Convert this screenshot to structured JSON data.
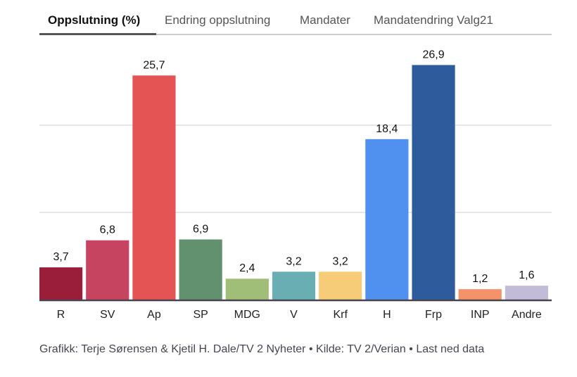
{
  "tabs": [
    {
      "label": "Oppslutning (%)",
      "active": true
    },
    {
      "label": "Endring oppslutning",
      "active": false
    },
    {
      "label": "Mandater",
      "active": false
    },
    {
      "label": "Mandatendring Valg21",
      "active": false
    }
  ],
  "footer": {
    "credit": "Grafikk: Terje Sørensen & Kjetil H. Dale/TV 2 Nyheter",
    "separator": "•",
    "source": "Kilde: TV 2/Verian",
    "download_link": "Last ned data"
  },
  "chart_data": {
    "type": "bar",
    "title": "Oppslutning (%)",
    "xlabel": "",
    "ylabel": "",
    "ylim": [
      0,
      27.5
    ],
    "gridlines": [
      10,
      20
    ],
    "grid": true,
    "categories": [
      "R",
      "SV",
      "Ap",
      "SP",
      "MDG",
      "V",
      "Krf",
      "H",
      "Frp",
      "INP",
      "Andre"
    ],
    "values": [
      3.7,
      6.8,
      25.7,
      6.9,
      2.4,
      3.2,
      3.2,
      18.4,
      26.9,
      1.2,
      1.6
    ],
    "value_labels": [
      "3,7",
      "6,8",
      "25,7",
      "6,9",
      "2,4",
      "3,2",
      "3,2",
      "18,4",
      "26,9",
      "1,2",
      "1,6"
    ],
    "colors": [
      "#9a1e3a",
      "#c64460",
      "#e45455",
      "#629170",
      "#a0be78",
      "#69aeb2",
      "#f6cc78",
      "#5090ee",
      "#2e5b9c",
      "#f4926a",
      "#c3bcd8"
    ],
    "baseline_color": "#4a4450",
    "grid_color": "#dddddd"
  }
}
